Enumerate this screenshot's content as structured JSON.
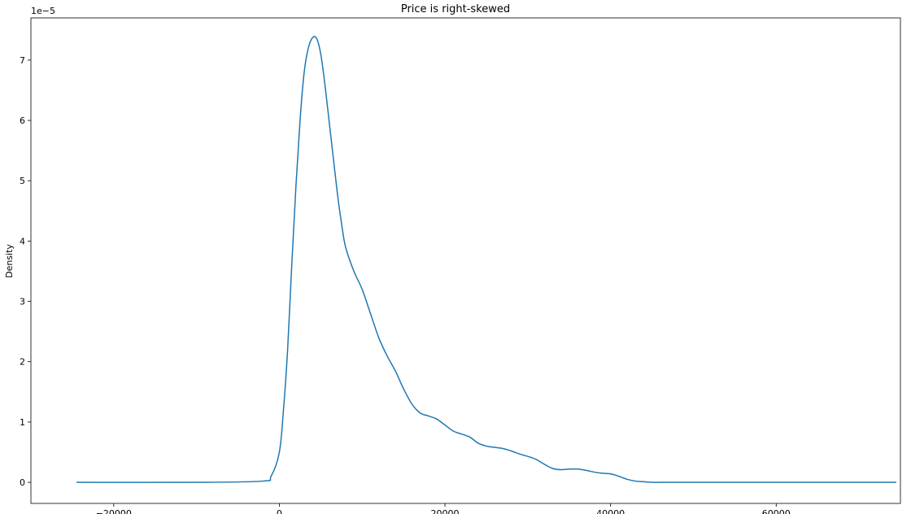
{
  "chart_data": {
    "type": "line",
    "title": "Price is right-skewed",
    "xlabel": "",
    "ylabel": "Density",
    "y_scale_label": "1e−5",
    "y_scale_factor": 1e-05,
    "xlim": [
      -30000,
      75000
    ],
    "ylim": [
      -0.35,
      7.7
    ],
    "x_ticks": [
      -20000,
      0,
      20000,
      40000,
      60000
    ],
    "x_tick_labels": [
      "−20000",
      "0",
      "20000",
      "40000",
      "60000"
    ],
    "y_ticks": [
      0,
      1,
      2,
      3,
      4,
      5,
      6,
      7
    ],
    "y_tick_labels": [
      "0",
      "1",
      "2",
      "3",
      "4",
      "5",
      "6",
      "7"
    ],
    "grid": false,
    "series": [
      {
        "color": "#1f77b4",
        "x": [
          -24500,
          -10000,
          -2000,
          -1000,
          0,
          500,
          1000,
          1500,
          2000,
          2500,
          3000,
          3500,
          4000,
          4500,
          5000,
          5500,
          6000,
          6500,
          7000,
          7500,
          8000,
          9000,
          10000,
          11000,
          12000,
          13000,
          14000,
          15000,
          16000,
          17000,
          18000,
          19000,
          20000,
          21000,
          22000,
          23000,
          24000,
          25000,
          26000,
          27000,
          28000,
          29000,
          30000,
          31000,
          32000,
          33000,
          34000,
          35000,
          36000,
          37000,
          38000,
          39000,
          40000,
          41000,
          42000,
          43000,
          44000,
          45000,
          46000,
          47000,
          48000,
          49000,
          50000,
          51000,
          52000,
          53000,
          55000,
          60000,
          65000,
          70000,
          74500
        ],
        "y": [
          0,
          0,
          0.02,
          0.1,
          0.5,
          1.2,
          2.2,
          3.6,
          4.9,
          6.0,
          6.8,
          7.2,
          7.37,
          7.36,
          7.1,
          6.6,
          6.0,
          5.4,
          4.8,
          4.3,
          3.9,
          3.5,
          3.2,
          2.8,
          2.4,
          2.1,
          1.85,
          1.55,
          1.3,
          1.15,
          1.1,
          1.05,
          0.95,
          0.85,
          0.8,
          0.75,
          0.65,
          0.6,
          0.58,
          0.56,
          0.52,
          0.47,
          0.43,
          0.38,
          0.3,
          0.23,
          0.21,
          0.22,
          0.22,
          0.2,
          0.17,
          0.15,
          0.14,
          0.1,
          0.05,
          0.02,
          0.01,
          0,
          0,
          0,
          0,
          0,
          0,
          0,
          0,
          0,
          0,
          0,
          0,
          0,
          0
        ]
      }
    ]
  }
}
